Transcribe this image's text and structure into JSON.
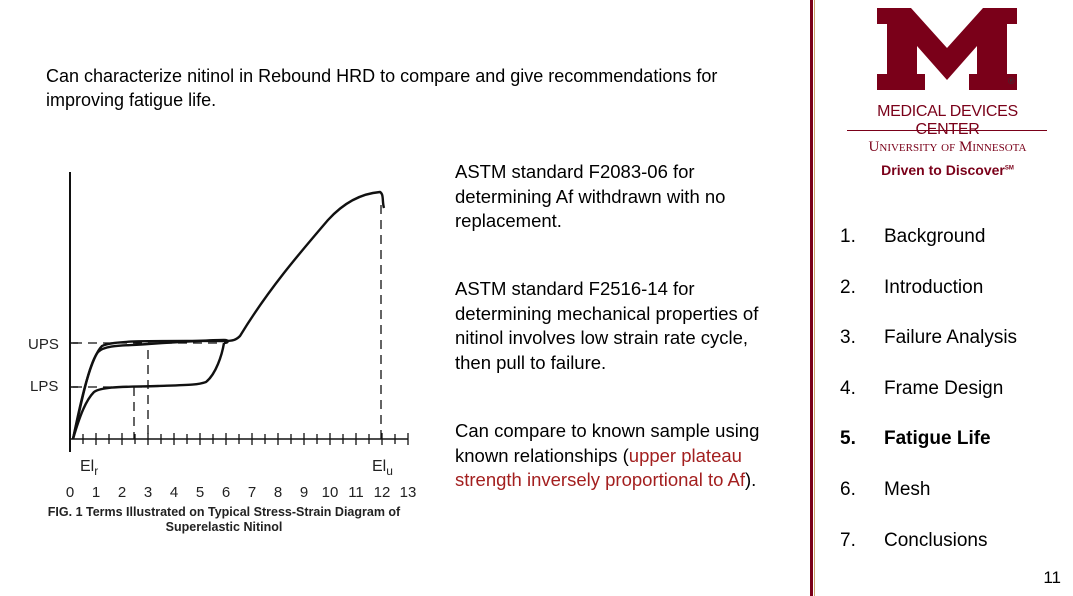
{
  "intro": "Can characterize nitinol in Rebound HRD to compare and give recommendations for improving fatigue life.",
  "paragraphs": {
    "p1": "ASTM standard F2083-06 for determining Af withdrawn with no replacement.",
    "p2": "ASTM standard F2516-14 for determining mechanical properties of nitinol involves low strain rate cycle, then pull to failure.",
    "p3_start": "Can compare to known sample using known relationships (",
    "p3_highlight": "upper plateau strength inversely proportional to Af",
    "p3_end": ")."
  },
  "figure": {
    "caption": "FIG. 1 Terms Illustrated on Typical Stress-Strain Diagram of Superelastic Nitinol",
    "ups_label": "UPS",
    "lps_label": "LPS",
    "elr_label": "El",
    "elr_sub": "r",
    "elu_label": "El",
    "elu_sub": "u",
    "x_ticks": [
      "0",
      "1",
      "2",
      "3",
      "4",
      "5",
      "6",
      "7",
      "8",
      "9",
      "10",
      "11",
      "12",
      "13"
    ]
  },
  "logo": {
    "center_name": "MEDICAL DEVICES CENTER",
    "university": "University of Minnesota",
    "tagline": "Driven to Discover",
    "tagline_mark": "SM",
    "registered_mark": "®"
  },
  "nav": [
    {
      "num": "1.",
      "label": "Background",
      "active": false
    },
    {
      "num": "2.",
      "label": "Introduction",
      "active": false
    },
    {
      "num": "3.",
      "label": "Failure Analysis",
      "active": false
    },
    {
      "num": "4.",
      "label": "Frame Design",
      "active": false
    },
    {
      "num": "5.",
      "label": "Fatigue Life",
      "active": true
    },
    {
      "num": "6.",
      "label": "Mesh",
      "active": false
    },
    {
      "num": "7.",
      "label": "Conclusions",
      "active": false
    }
  ],
  "page_number": "11",
  "colors": {
    "brand_maroon": "#7a0019",
    "highlight_red": "#a31f1f",
    "gold": "#c9a56a"
  }
}
